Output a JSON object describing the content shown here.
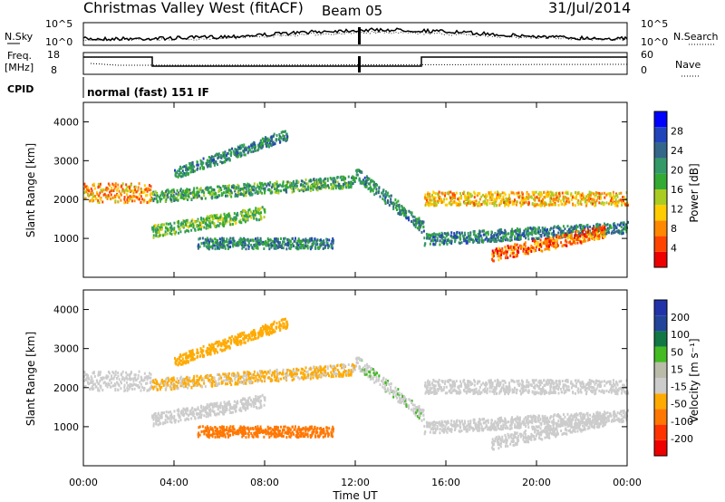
{
  "header": {
    "station": "Christmas Valley West (fitACF)",
    "beam": "Beam 05",
    "date": "31/Jul/2014"
  },
  "noise_panel": {
    "left_label": "N.Sky",
    "right_label": "N.Search",
    "ticks_left": [
      "10^5",
      "10^0"
    ],
    "ticks_right": [
      "10^5",
      "10^0"
    ]
  },
  "freq_panel": {
    "left_label_1": "Freq.",
    "left_label_2": "[MHz]",
    "right_label": "Nave",
    "ticks_left": [
      "18",
      "8"
    ],
    "ticks_right": [
      "60",
      "0"
    ]
  },
  "cpid": {
    "label": "CPID",
    "value": "normal (fast) 151 IF"
  },
  "colors": {
    "power_scale": [
      "#0000ff",
      "#2244bb",
      "#336688",
      "#339966",
      "#33aa33",
      "#aacc22",
      "#ffcc00",
      "#ff8800",
      "#ff4400",
      "#ee0000"
    ],
    "velocity_scale": [
      "#2233aa",
      "#224499",
      "#117744",
      "#44bb22",
      "#bbbbaa",
      "#cccccc",
      "#ffaa00",
      "#ff7700",
      "#ff3300",
      "#ee0000"
    ]
  },
  "chart_data": [
    {
      "type": "heatmap",
      "title": "",
      "xlabel": "Time UT",
      "ylabel": "Slant Range [km]",
      "xlim": [
        0,
        24
      ],
      "ylim": [
        0,
        4500
      ],
      "x_ticks": [
        "00:00",
        "04:00",
        "08:00",
        "12:00",
        "16:00",
        "20:00",
        "00:00"
      ],
      "y_ticks": [
        "1000",
        "2000",
        "3000",
        "4000"
      ],
      "colorbar": {
        "label": "Power [dB]",
        "ticks": [
          "28",
          "24",
          "20",
          "16",
          "12",
          "8",
          "4"
        ],
        "range": [
          0,
          30
        ]
      }
    },
    {
      "type": "heatmap",
      "title": "",
      "xlabel": "Time UT",
      "ylabel": "Slant Range [km]",
      "xlim": [
        0,
        24
      ],
      "ylim": [
        0,
        4500
      ],
      "x_ticks": [
        "00:00",
        "04:00",
        "08:00",
        "12:00",
        "16:00",
        "20:00",
        "00:00"
      ],
      "y_ticks": [
        "1000",
        "2000",
        "3000",
        "4000"
      ],
      "colorbar": {
        "label": "Velocity [m s⁻¹]",
        "ticks": [
          "200",
          "100",
          "50",
          "15",
          "-15",
          "-50",
          "-100",
          "-200"
        ],
        "range": [
          -250,
          250
        ]
      }
    }
  ]
}
